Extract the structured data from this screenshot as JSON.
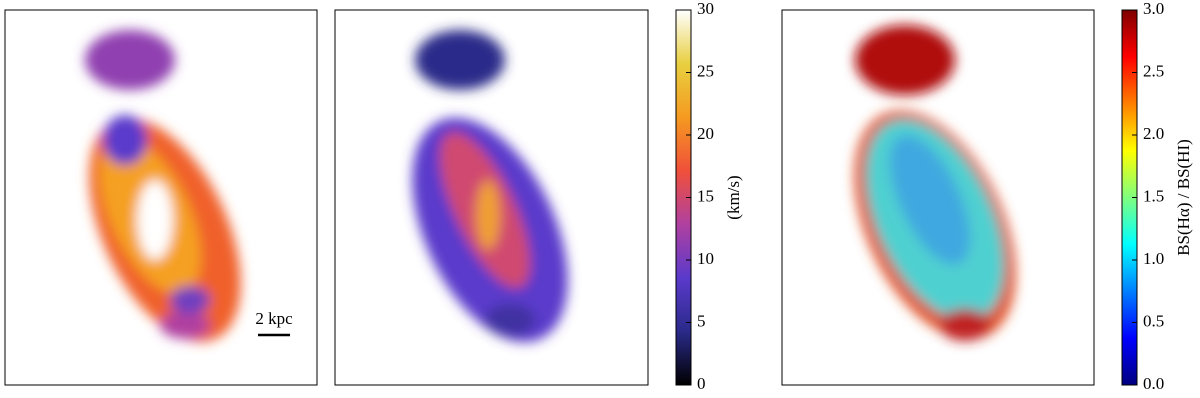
{
  "scale_bar": "2 kpc",
  "colorbars": [
    {
      "label": "(km/s)",
      "lim": [
        0,
        30
      ],
      "ticks": [
        0,
        5,
        10,
        15,
        20,
        25,
        30
      ],
      "colors": [
        "#000000",
        "#2a2a8a",
        "#5a3acb",
        "#b040a0",
        "#f0503a",
        "#f59a20",
        "#e8d040",
        "#ffffff"
      ]
    },
    {
      "label": "BS(Hα) / BS(HI)",
      "lim": [
        0,
        3
      ],
      "ticks": [
        {
          "value": 0,
          "label": "0.0"
        },
        0.5,
        {
          "value": 1,
          "label": "1.0"
        },
        1.5,
        {
          "value": 2,
          "label": "2.0"
        },
        2.5,
        {
          "value": 3,
          "label": "3.0"
        }
      ],
      "colors": [
        "#00007f",
        "#0000ff",
        "#007fff",
        "#00ffff",
        "#7fff7f",
        "#ffff00",
        "#ff7f00",
        "#ff0000",
        "#7f0000"
      ]
    }
  ]
}
